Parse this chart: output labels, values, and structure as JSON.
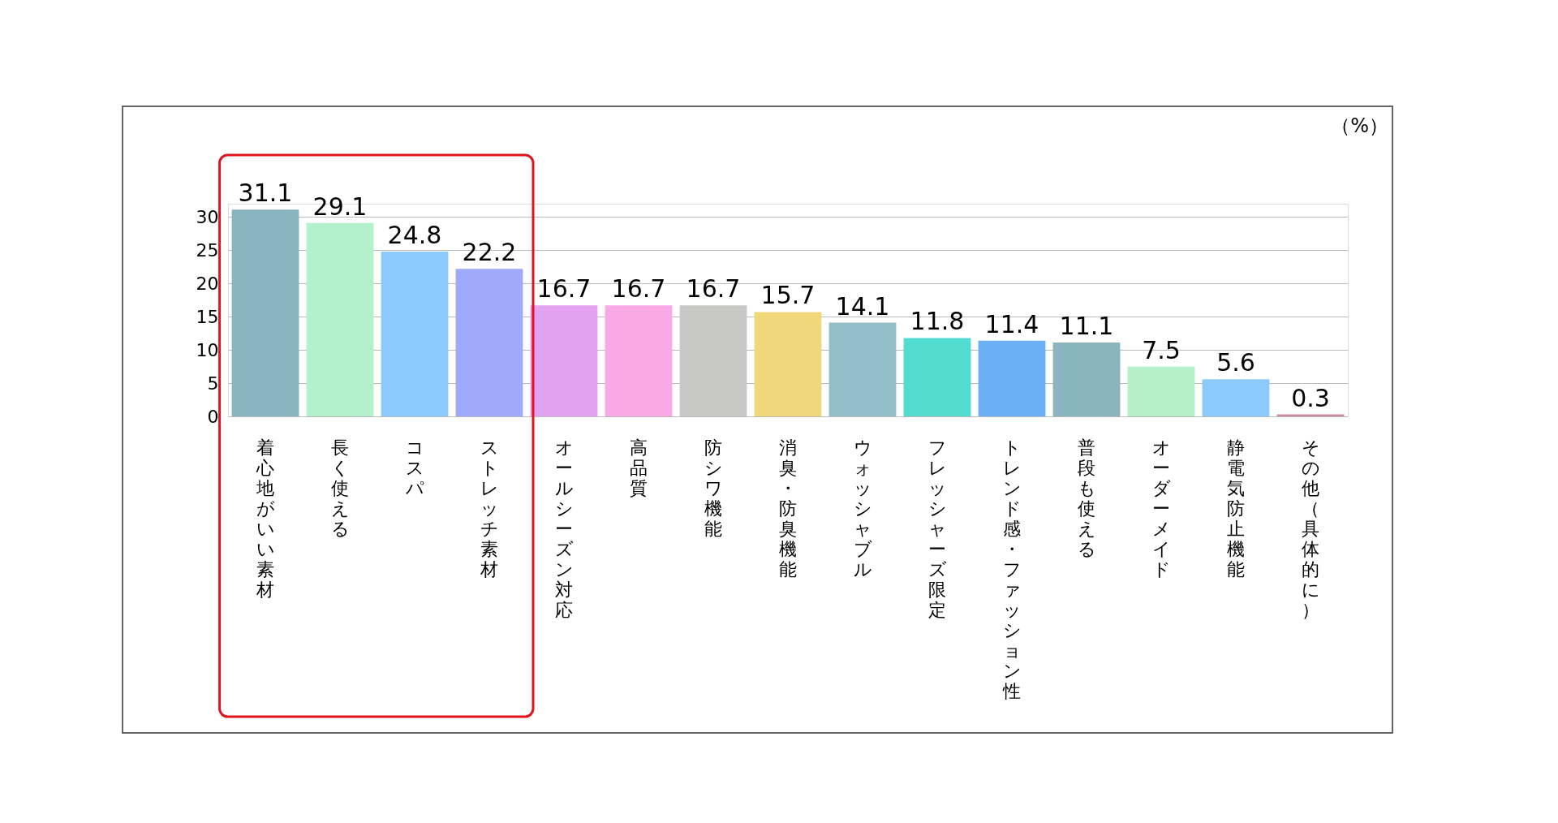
{
  "chart_data": {
    "type": "bar",
    "ylabel": "（%）",
    "categories": [
      "着心地がいい素材",
      "長く使える",
      "コスパ",
      "ストレッチ素材",
      "オールシーズン対応",
      "高品質",
      "防シワ機能",
      "消臭・防臭機能",
      "ウォッシャブル",
      "フレッシャーズ限定",
      "トレンド感・ファッション性",
      "普段も使える",
      "オーダーメイド",
      "静電気防止機能",
      "その他（具体的に）"
    ],
    "values": [
      31.1,
      29.1,
      24.8,
      22.2,
      16.7,
      16.7,
      16.7,
      15.7,
      14.1,
      11.8,
      11.4,
      11.1,
      7.5,
      5.6,
      0.3
    ],
    "colors": [
      "#88b5bf",
      "#b3f0cb",
      "#8dcafc",
      "#9faafc",
      "#e3a2f0",
      "#f9aae6",
      "#c8c9c6",
      "#f0d77a",
      "#92bfca",
      "#50ddd0",
      "#6bb0f4",
      "#8ab5bf",
      "#b5f0cb",
      "#8dcafc",
      "#c98c9d"
    ],
    "ylim": [
      0,
      32
    ],
    "yticks": [
      0,
      5,
      10,
      15,
      20,
      25,
      30
    ],
    "grid": "y",
    "data_labels": true
  }
}
